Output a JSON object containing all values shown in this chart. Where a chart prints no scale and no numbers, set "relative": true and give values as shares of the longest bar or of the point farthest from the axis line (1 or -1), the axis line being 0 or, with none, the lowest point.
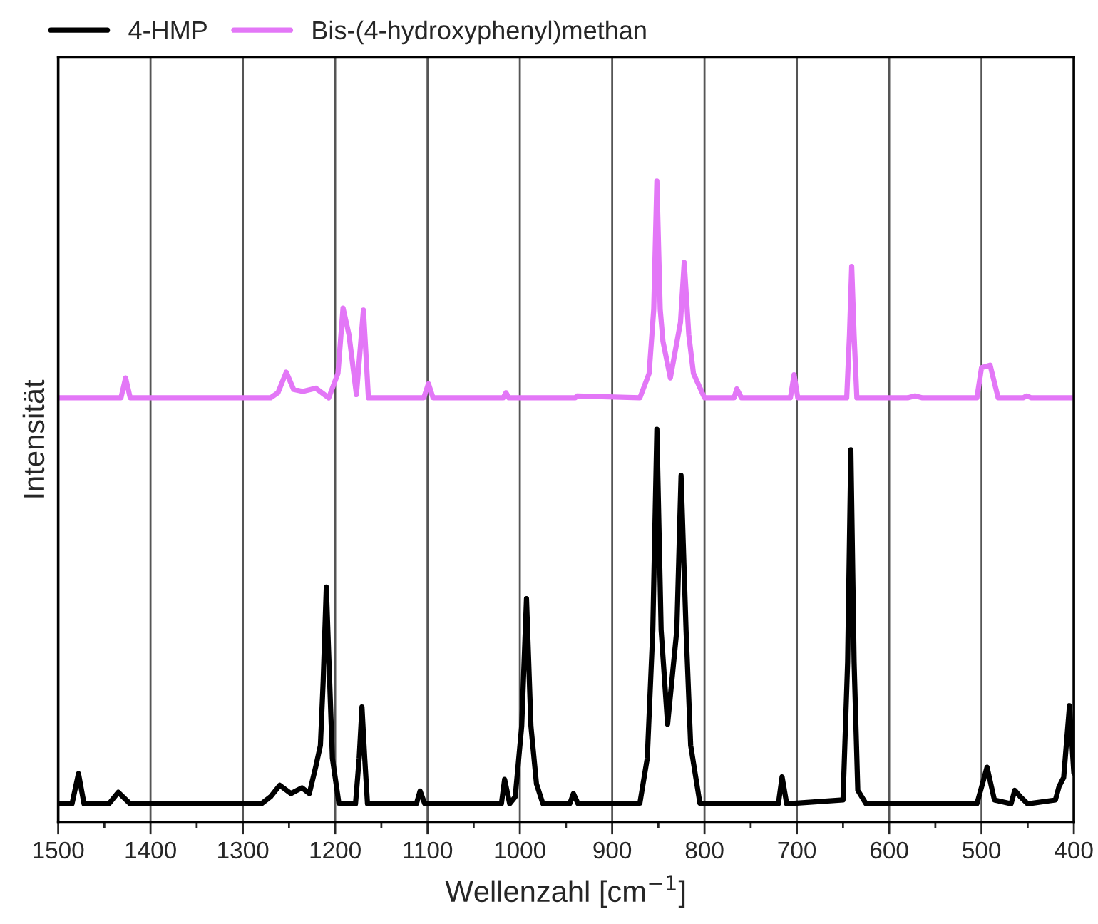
{
  "chart_data": {
    "type": "line",
    "relative": true,
    "xlabel": "Wellenzahl [cm$^{−1}$]",
    "ylabel": "Intensität",
    "xlim": [
      1500,
      400
    ],
    "xticks": [
      1500,
      {
        "value": 1450,
        "label": null
      },
      1400,
      {
        "value": 1350,
        "label": null
      },
      1300,
      {
        "value": 1250,
        "label": null
      },
      1200,
      {
        "value": 1150,
        "label": null
      },
      1100,
      {
        "value": 1050,
        "label": null
      },
      1000,
      {
        "value": 950,
        "label": null
      },
      900,
      {
        "value": 850,
        "label": null
      },
      800,
      {
        "value": 750,
        "label": null
      },
      700,
      {
        "value": 650,
        "label": null
      },
      600,
      {
        "value": 550,
        "label": null
      },
      500,
      {
        "value": 450,
        "label": null
      },
      400
    ],
    "grid": "x",
    "legend": "top",
    "tick_labels": "x",
    "marker": "none",
    "line_style": "solid",
    "series": [
      {
        "name": "4-HMP",
        "color": "#000000",
        "x": [
          1500,
          1485,
          1478,
          1472,
          1445,
          1435,
          1422,
          1280,
          1270,
          1260,
          1248,
          1236,
          1228,
          1221,
          1216,
          1213,
          1209.6,
          1206,
          1203,
          1196,
          1178,
          1174,
          1171,
          1168,
          1165,
          1112,
          1108,
          1103,
          1020,
          1016.5,
          1011,
          1005,
          998,
          992.8,
          988,
          982,
          975,
          946,
          942,
          937,
          870,
          862,
          856,
          851.6,
          847,
          840,
          830,
          825.4,
          820,
          815,
          805,
          720,
          716,
          711,
          650,
          645,
          641.5,
          638,
          634,
          625,
          505,
          494,
          486,
          468,
          464,
          458,
          450,
          420,
          416,
          411,
          404.7,
          400
        ],
        "values": [
          0.029,
          0.029,
          0.076,
          0.029,
          0.029,
          0.047,
          0.029,
          0.029,
          0.04,
          0.058,
          0.045,
          0.054,
          0.045,
          0.087,
          0.12,
          0.22,
          0.367,
          0.22,
          0.1,
          0.03,
          0.029,
          0.1,
          0.18,
          0.1,
          0.029,
          0.029,
          0.049,
          0.029,
          0.029,
          0.067,
          0.029,
          0.04,
          0.15,
          0.349,
          0.15,
          0.06,
          0.029,
          0.029,
          0.045,
          0.029,
          0.03,
          0.1,
          0.3,
          0.613,
          0.3,
          0.153,
          0.3,
          0.541,
          0.3,
          0.12,
          0.03,
          0.029,
          0.071,
          0.029,
          0.035,
          0.25,
          0.581,
          0.25,
          0.05,
          0.029,
          0.029,
          0.086,
          0.035,
          0.029,
          0.05,
          0.04,
          0.029,
          0.035,
          0.056,
          0.07,
          0.182,
          0.077
        ]
      },
      {
        "name": "Bis-(4-hydroxyphenyl)methan",
        "color": "#e377f7",
        "x": [
          1500,
          1432,
          1427,
          1422,
          1270,
          1262,
          1253,
          1245,
          1235,
          1221,
          1207,
          1197,
          1191.5,
          1185,
          1177,
          1169.4,
          1164,
          1104,
          1099,
          1094,
          1018,
          1015,
          1012,
          940,
          938,
          870,
          860,
          855,
          851.6,
          848,
          845,
          837,
          826,
          822,
          817,
          812,
          800,
          768,
          765,
          760,
          707,
          703,
          699,
          646,
          643,
          640.6,
          638,
          635,
          580,
          572,
          564,
          505,
          500,
          490.7,
          482,
          455,
          451,
          446,
          400
        ],
        "values": [
          0.662,
          0.662,
          0.693,
          0.662,
          0.662,
          0.67,
          0.702,
          0.675,
          0.672,
          0.677,
          0.662,
          0.7,
          0.802,
          0.76,
          0.667,
          0.799,
          0.662,
          0.662,
          0.684,
          0.662,
          0.662,
          0.67,
          0.662,
          0.662,
          0.665,
          0.662,
          0.7,
          0.8,
          1.0,
          0.8,
          0.75,
          0.693,
          0.78,
          0.873,
          0.76,
          0.7,
          0.662,
          0.662,
          0.676,
          0.662,
          0.662,
          0.698,
          0.662,
          0.662,
          0.76,
          0.867,
          0.76,
          0.662,
          0.662,
          0.665,
          0.662,
          0.662,
          0.709,
          0.713,
          0.662,
          0.662,
          0.665,
          0.662,
          0.662
        ]
      }
    ]
  }
}
